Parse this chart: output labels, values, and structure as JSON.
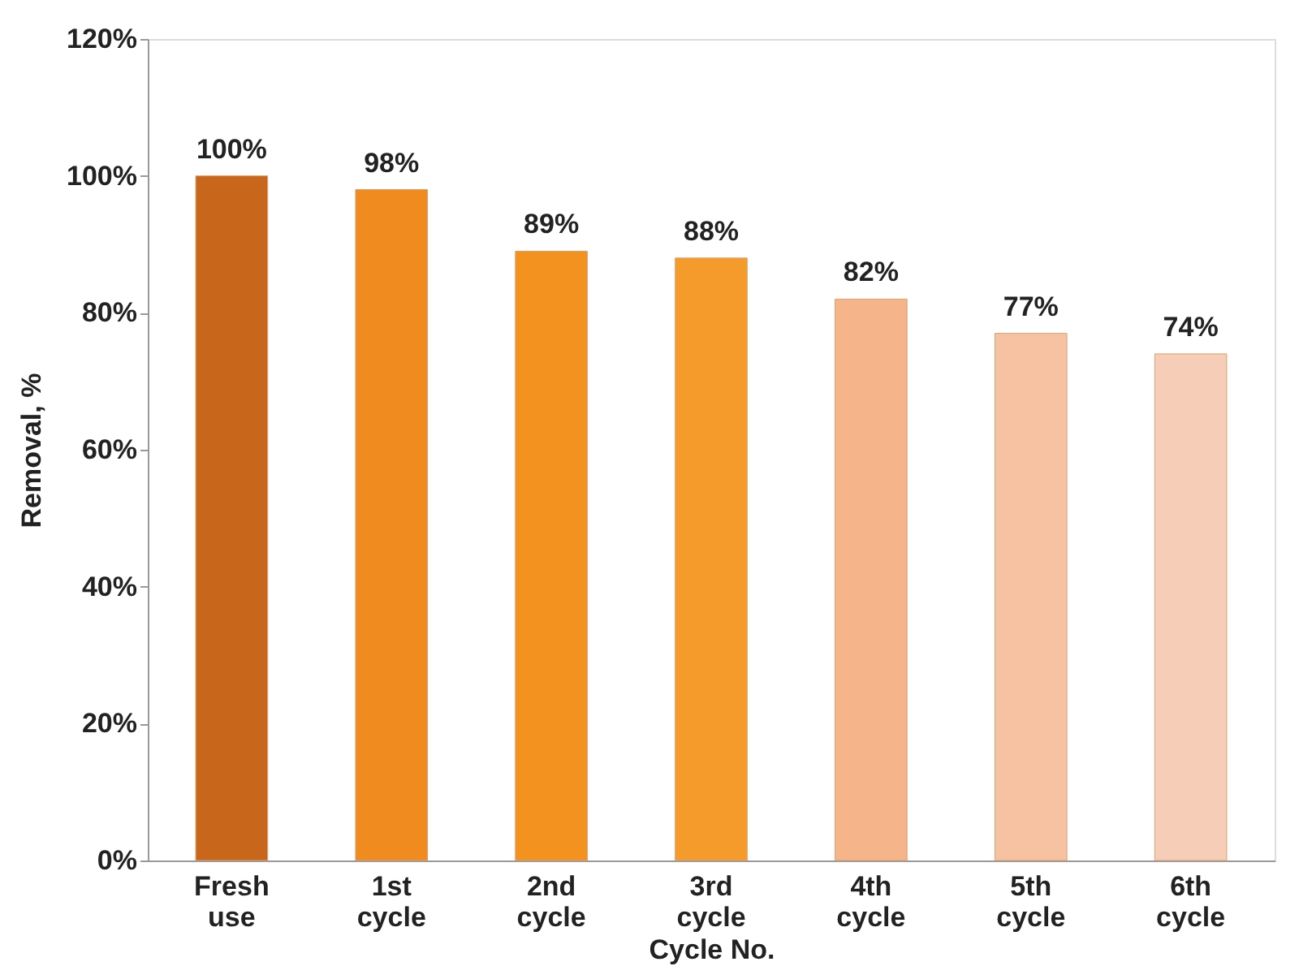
{
  "chart_data": {
    "type": "bar",
    "xlabel": "Cycle No.",
    "ylabel": "Removal, %",
    "categories": [
      "Fresh use",
      "1st cycle",
      "2nd cycle",
      "3rd cycle",
      "4th cycle",
      "5th cycle",
      "6th cycle"
    ],
    "values": [
      100,
      98,
      89,
      88,
      82,
      77,
      74
    ],
    "colors": [
      "#c8661c",
      "#f08b1f",
      "#f4921f",
      "#f59b2c",
      "#f6b48a",
      "#f6c2a2",
      "#f6cdb6"
    ],
    "value_labels": [
      "100%",
      "98%",
      "89%",
      "88%",
      "82%",
      "77%",
      "74%"
    ],
    "ylim": [
      0,
      120
    ],
    "yticks": [
      {
        "value": 0,
        "label": "0%"
      },
      {
        "value": 20,
        "label": "20%"
      },
      {
        "value": 40,
        "label": "40%"
      },
      {
        "value": 60,
        "label": "60%"
      },
      {
        "value": 80,
        "label": "80%"
      },
      {
        "value": 100,
        "label": "100%"
      },
      {
        "value": 120,
        "label": "120%"
      }
    ],
    "grid": false
  }
}
